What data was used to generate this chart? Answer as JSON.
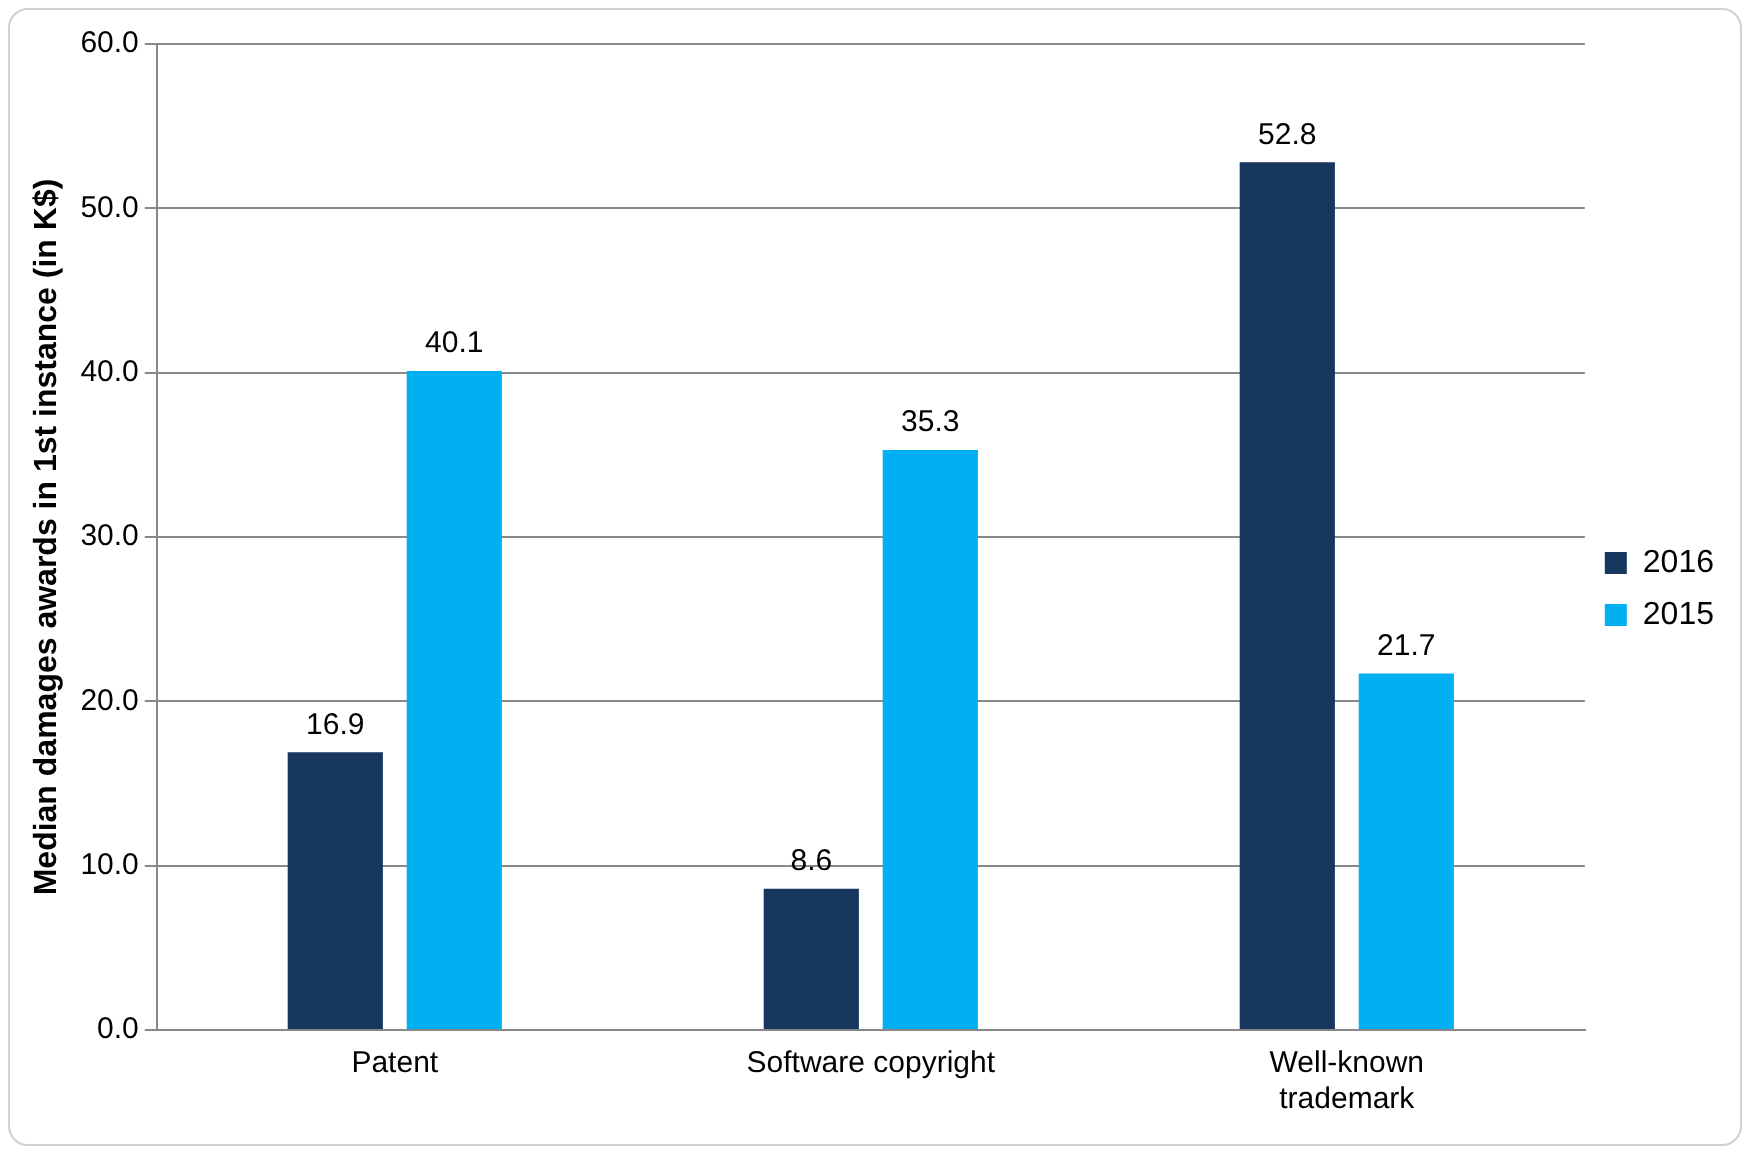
{
  "chart_data": {
    "type": "bar",
    "ylabel": "Median damages awards in 1st instance (in K$)",
    "categories": [
      "Patent",
      "Software copyright",
      "Well-known trademark"
    ],
    "series": [
      {
        "name": "2016",
        "color": "#17375e",
        "values": [
          16.9,
          8.6,
          52.8
        ]
      },
      {
        "name": "2015",
        "color": "#00b0f0",
        "values": [
          40.1,
          35.3,
          21.7
        ]
      }
    ],
    "ylim": [
      0,
      60
    ],
    "yticks": [
      {
        "value": 0,
        "label": "0.0"
      },
      {
        "value": 10,
        "label": "10.0"
      },
      {
        "value": 20,
        "label": "20.0"
      },
      {
        "value": 30,
        "label": "30.0"
      },
      {
        "value": 40,
        "label": "40.0"
      },
      {
        "value": 50,
        "label": "50.0"
      },
      {
        "value": 60,
        "label": "60.0"
      }
    ],
    "grid": "y",
    "legend": "right",
    "data_labels": true
  }
}
